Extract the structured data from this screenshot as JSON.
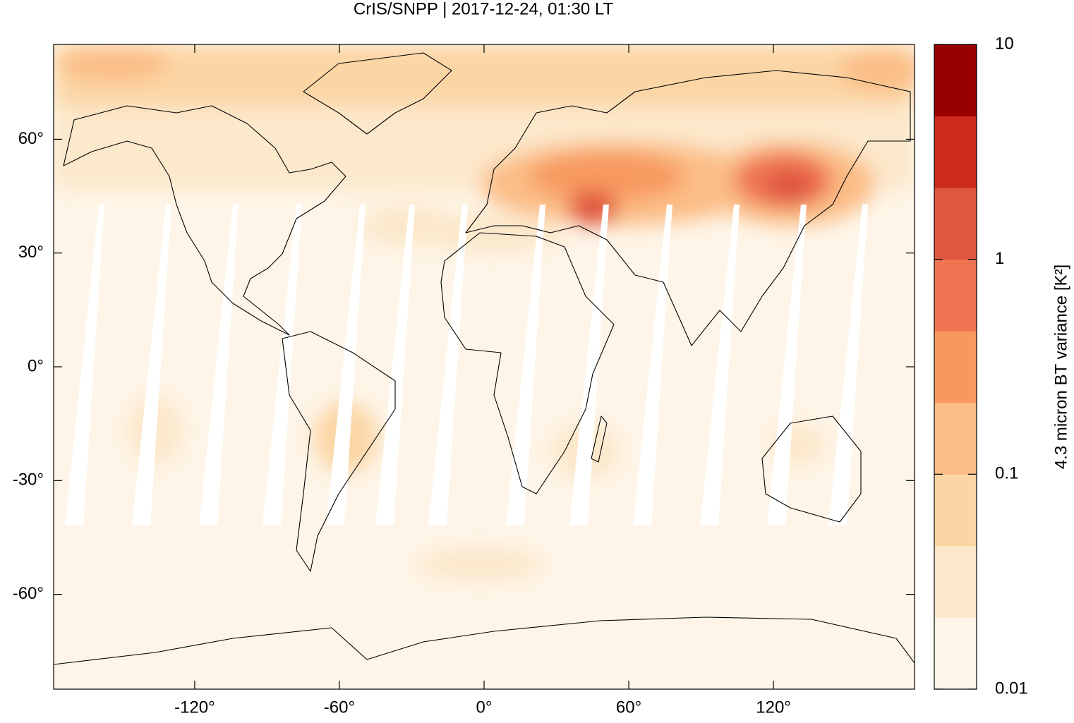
{
  "chart_data": {
    "type": "map",
    "title": "CrIS/SNPP | 2017-12-24, 01:30 LT",
    "xlim": [
      -178.5,
      178.5
    ],
    "ylim": [
      -85,
      85
    ],
    "xticks": [
      {
        "value": -120,
        "label": "-120°"
      },
      {
        "value": -60,
        "label": "-60°"
      },
      {
        "value": 0,
        "label": "0°"
      },
      {
        "value": 60,
        "label": "60°"
      },
      {
        "value": 120,
        "label": "120°"
      }
    ],
    "yticks": [
      {
        "value": 60,
        "label": "60°"
      },
      {
        "value": 30,
        "label": "30°"
      },
      {
        "value": 0,
        "label": "0°"
      },
      {
        "value": -30,
        "label": "-30°"
      },
      {
        "value": -60,
        "label": "-60°"
      }
    ],
    "colorbar": {
      "label": "4.3 micron BT variance [K²]",
      "log_scale": true,
      "clim": [
        0.01,
        10
      ],
      "ticks": [
        0.01,
        0.1,
        1,
        10
      ],
      "colors": [
        "#fef5e8",
        "#fce8cb",
        "#fbd5a4",
        "#fbbd86",
        "#f7995f",
        "#ef7553",
        "#e0573f",
        "#cc2b1e",
        "#990000"
      ]
    }
  }
}
